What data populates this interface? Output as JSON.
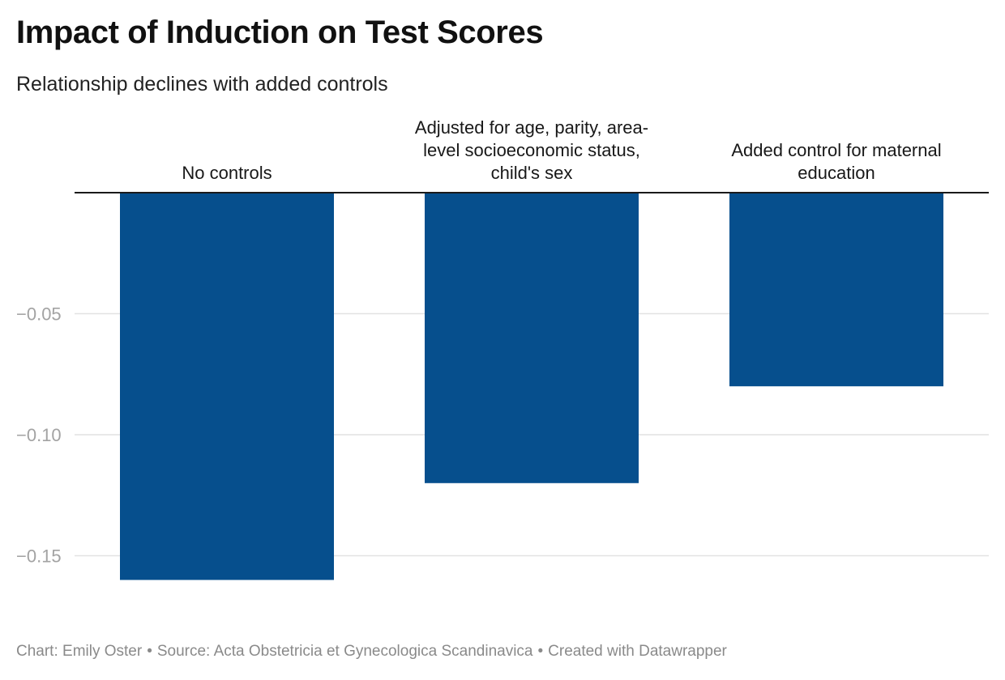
{
  "header": {
    "title": "Impact of Induction on Test Scores",
    "subtitle": "Relationship declines with added controls"
  },
  "chart_data": {
    "type": "bar",
    "categories": [
      "No controls",
      "Adjusted for age, parity, area-level socioeconomic status, child's sex",
      "Added control for maternal education"
    ],
    "category_label_lines": [
      [
        "No controls"
      ],
      [
        "Adjusted for age, parity, area-",
        "level socioeconomic status,",
        "child's sex"
      ],
      [
        "Added control for maternal",
        "education"
      ]
    ],
    "values": [
      -0.16,
      -0.12,
      -0.08
    ],
    "ylim": [
      -0.167,
      0
    ],
    "yticks": [
      -0.05,
      -0.1,
      -0.15
    ],
    "ytick_labels": [
      "−0.05",
      "−0.10",
      "−0.15"
    ],
    "grid": true,
    "bar_color": "#064f8d",
    "title": "Impact of Induction on Test Scores",
    "subtitle": "Relationship declines with added controls",
    "xlabel": "",
    "ylabel": ""
  },
  "footer": {
    "chart_credit": "Chart: Emily Oster",
    "source": "Source: Acta Obstetricia et Gynecologica Scandinavica",
    "created_with": "Created with Datawrapper",
    "separator": "•"
  }
}
